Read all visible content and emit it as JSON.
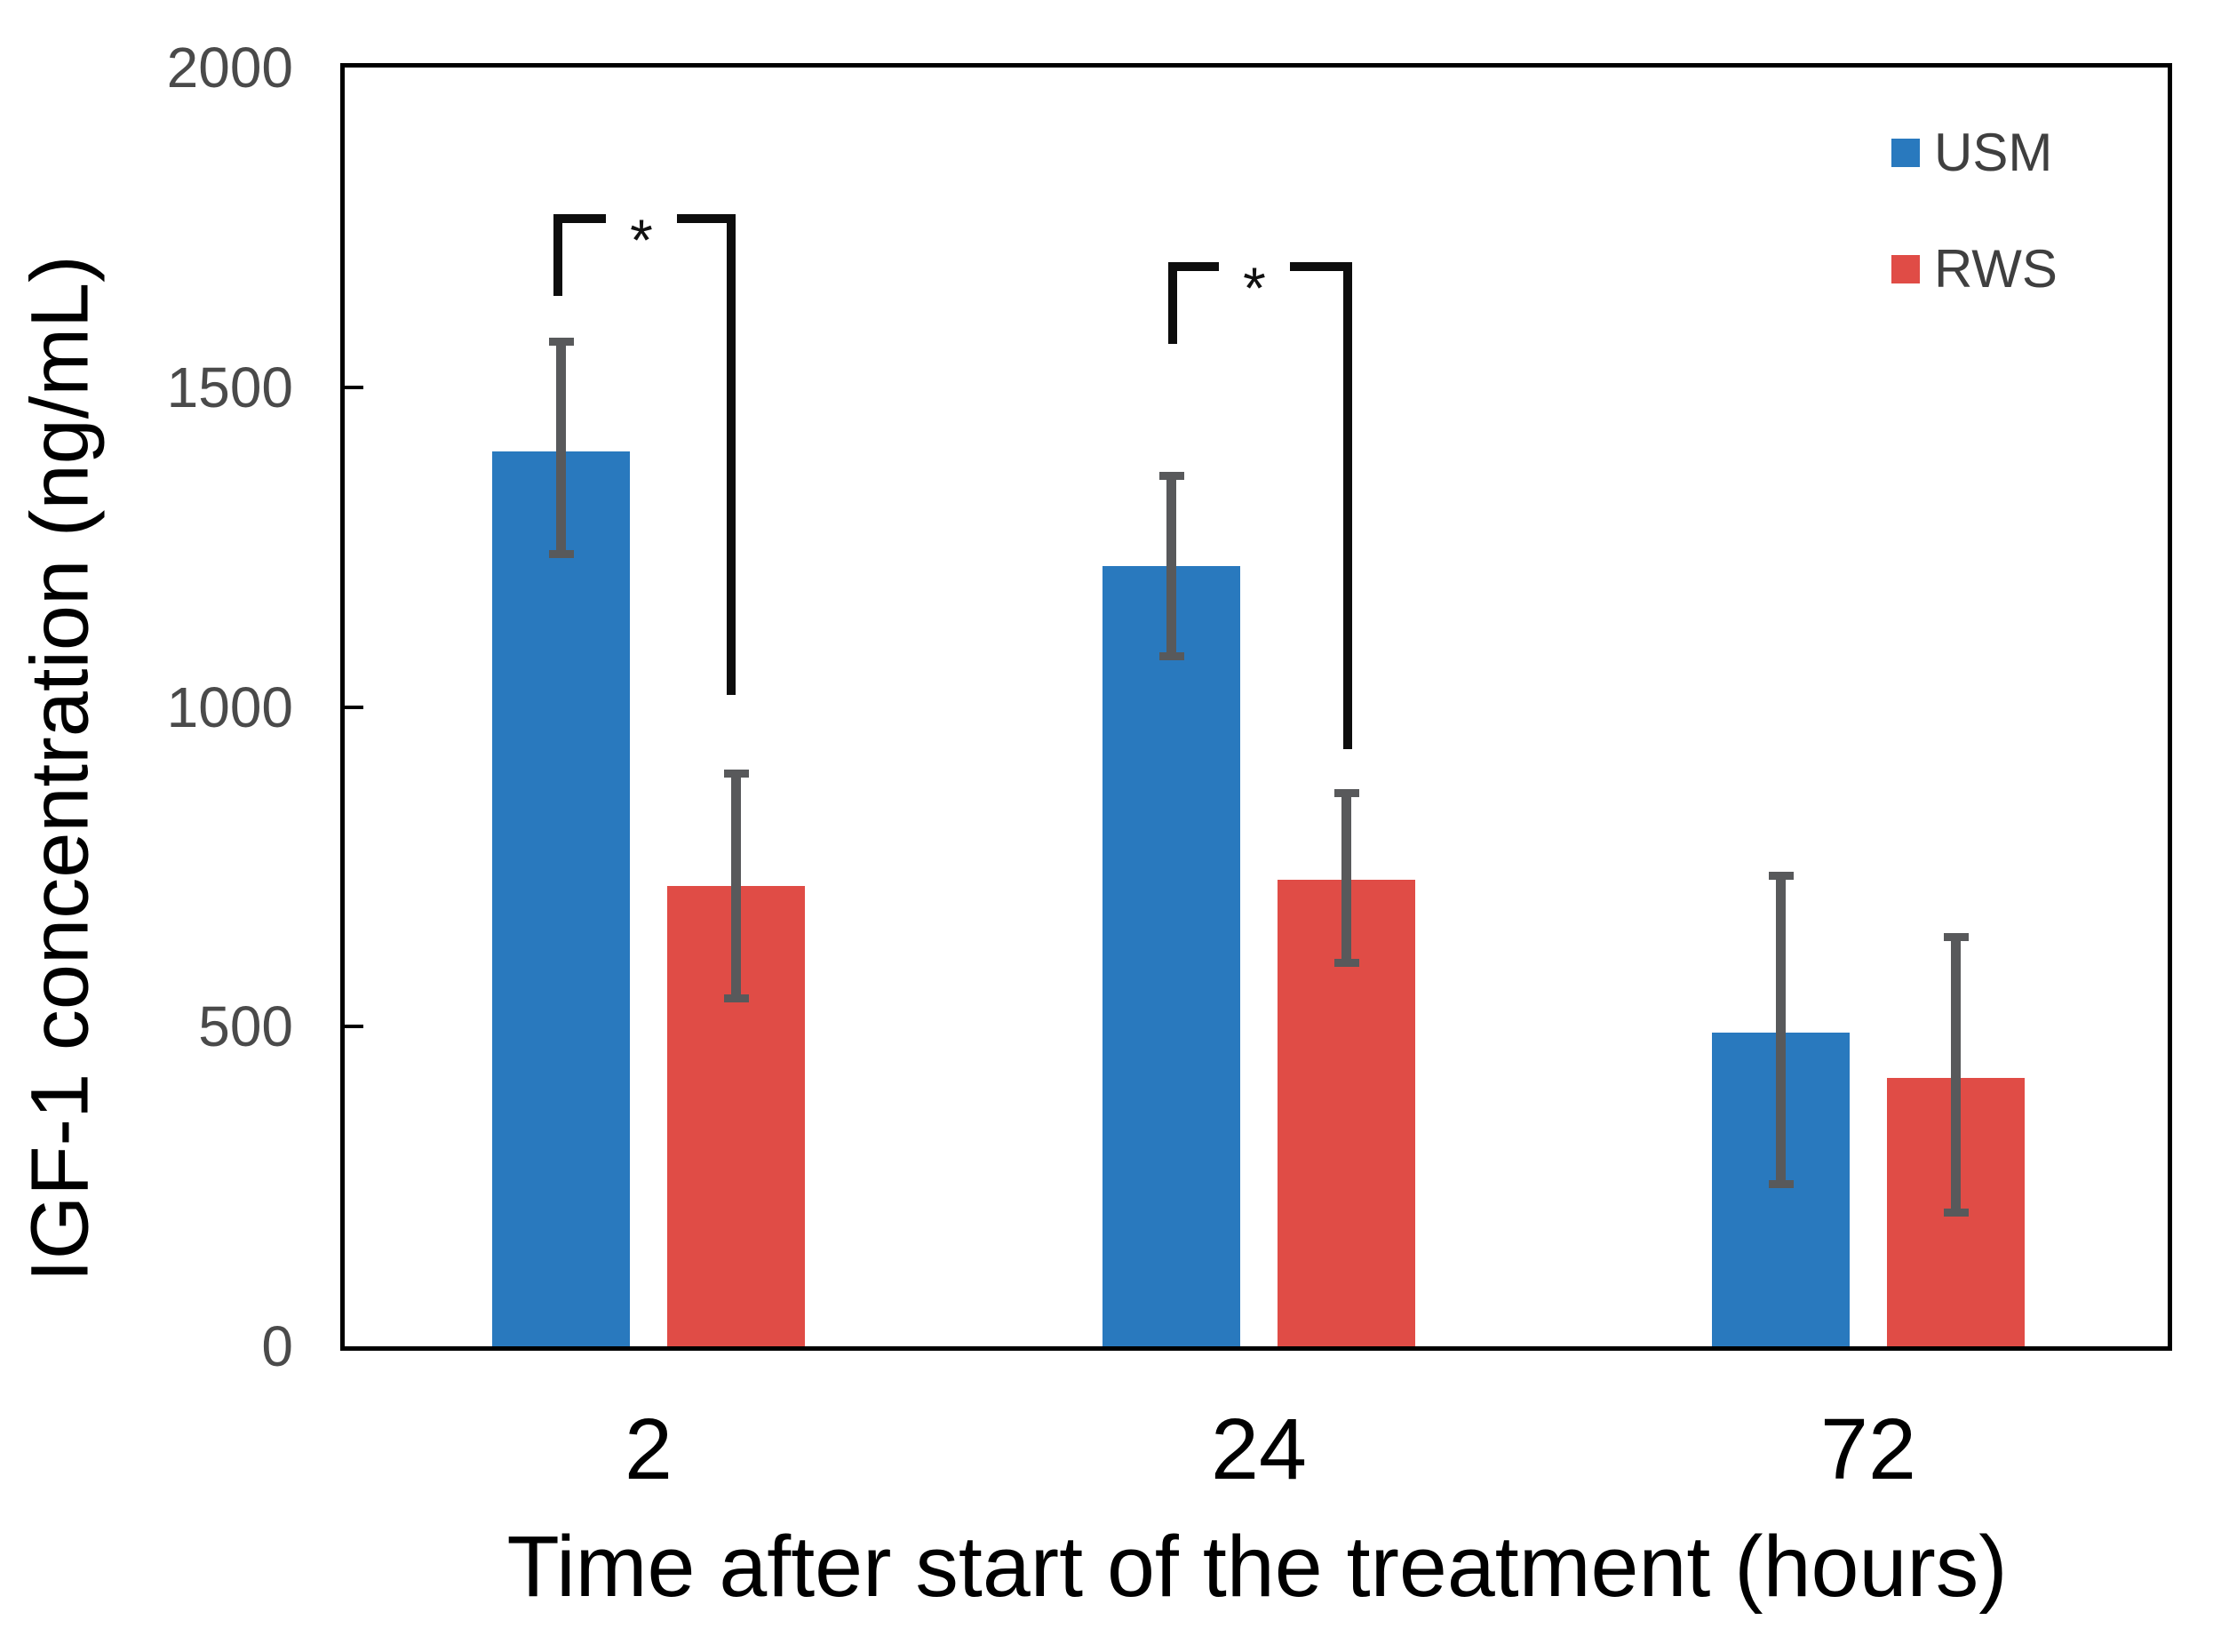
{
  "chart_data": {
    "type": "bar",
    "title": "",
    "xlabel": "Time after start of the treatment (hours)",
    "ylabel": "IGF-1 concentration (ng/mL)",
    "categories": [
      "2",
      "24",
      "72"
    ],
    "y_ticks": [
      0,
      500,
      1000,
      1500,
      2000
    ],
    "ylim": [
      0,
      2000
    ],
    "grid": false,
    "legend_position": "top-right-inside",
    "axis_color": "#000000",
    "error_bar_color": "#58595b",
    "series": [
      {
        "name": "USM",
        "color": "#2979be",
        "values": [
          1400,
          1220,
          490
        ],
        "error_low": [
          1240,
          1080,
          255
        ],
        "error_high": [
          1570,
          1360,
          735
        ]
      },
      {
        "name": "RWS",
        "color": "#e04c46",
        "values": [
          720,
          730,
          420
        ],
        "error_low": [
          545,
          600,
          210
        ],
        "error_high": [
          895,
          865,
          640
        ]
      }
    ],
    "annotations": [
      {
        "label": "*",
        "between": [
          "USM",
          "RWS"
        ],
        "category": "2"
      },
      {
        "label": "*",
        "between": [
          "USM",
          "RWS"
        ],
        "category": "24"
      }
    ]
  }
}
